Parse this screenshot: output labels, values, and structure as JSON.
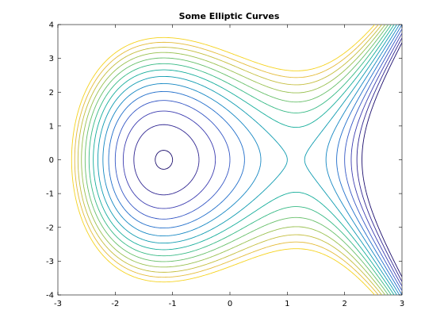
{
  "chart_data": {
    "type": "contour",
    "title": "Some Elliptic Curves",
    "xlabel": "",
    "ylabel": "",
    "xlim": [
      -3,
      3
    ],
    "ylim": [
      -4,
      4
    ],
    "xticks": [
      -3,
      -2,
      -1,
      0,
      1,
      2,
      3
    ],
    "yticks": [
      -4,
      -3,
      -2,
      -1,
      0,
      1,
      2,
      3,
      4
    ],
    "grid": false,
    "legend": "none",
    "function": "y^2 - x^3 + 4x",
    "levels": [
      -3,
      -2,
      -1,
      0,
      1,
      2,
      3,
      4,
      5,
      6,
      7,
      8,
      9,
      10
    ],
    "colormap": [
      "#1a0c6c",
      "#2f2591",
      "#3b3cb0",
      "#3456c4",
      "#1f6dca",
      "#1386c2",
      "#0e9bb0",
      "#14ad9a",
      "#35b984",
      "#67bf6a",
      "#98c04f",
      "#c4bd3c",
      "#e4bb38",
      "#f5d21c",
      "#f9f017"
    ]
  }
}
